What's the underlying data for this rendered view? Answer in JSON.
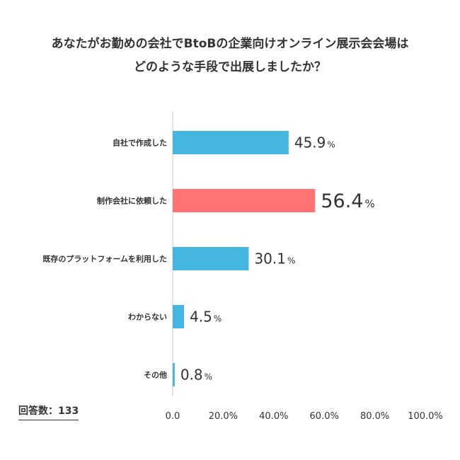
{
  "title": {
    "line1": "あなたがお勤めの会社でBtoBの企業向けオンライン展示会会場は",
    "line2": "どのような手段で出展しましたか？"
  },
  "respondents_label": "回答数：133",
  "colors": {
    "default": "#45b6e0",
    "highlight": "#ff7373",
    "text": "#333333",
    "axis": "#cccccc"
  },
  "chart_data": {
    "type": "bar",
    "orientation": "horizontal",
    "categories": [
      "自社で作成した",
      "制作会社に依頼した",
      "既存のプラットフォームを利用した",
      "わからない",
      "その他"
    ],
    "values": [
      45.9,
      56.4,
      30.1,
      4.5,
      0.8
    ],
    "value_labels": [
      "45.9",
      "56.4",
      "30.1",
      "4.5",
      "0.8"
    ],
    "value_unit": "%",
    "highlight_index": 1,
    "xlim": [
      0,
      100
    ],
    "xticks": [
      "0.0",
      "20.0%",
      "40.0%",
      "60.0%",
      "80.0%",
      "100.0%"
    ],
    "grid": false
  }
}
